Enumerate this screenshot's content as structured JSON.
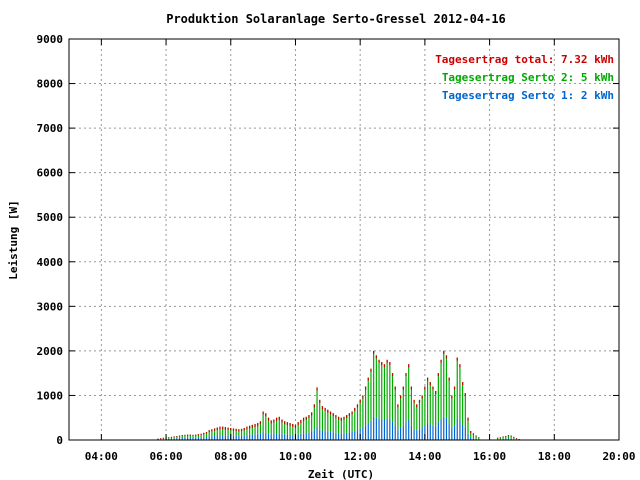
{
  "chart_data": {
    "type": "bar",
    "title": "Produktion Solaranlage Serto-Gressel 2012-04-16",
    "xlabel": "Zeit (UTC)",
    "ylabel": "Leistung [W]",
    "ylim": [
      0,
      9000
    ],
    "yticks": [
      "0",
      "1000",
      "2000",
      "3000",
      "4000",
      "5000",
      "6000",
      "7000",
      "8000",
      "9000"
    ],
    "xlim_hours": [
      3.0,
      20.0
    ],
    "xticks": [
      {
        "hour": 4,
        "label": "04:00"
      },
      {
        "hour": 6,
        "label": "06:00"
      },
      {
        "hour": 8,
        "label": "08:00"
      },
      {
        "hour": 10,
        "label": "10:00"
      },
      {
        "hour": 12,
        "label": "12:00"
      },
      {
        "hour": 14,
        "label": "14:00"
      },
      {
        "hour": 16,
        "label": "16:00"
      },
      {
        "hour": 18,
        "label": "18:00"
      },
      {
        "hour": 20,
        "label": "20:00"
      }
    ],
    "grid": true,
    "legend_position": "top-right",
    "legend": [
      {
        "text": "Tagesertrag total: 7.32 kWh",
        "color": "#cc0000"
      },
      {
        "text": "Tagesertrag Serto 2: 5 kWh",
        "color": "#00aa00"
      },
      {
        "text": "Tagesertrag Serto 1: 2 kWh",
        "color": "#0066cc"
      }
    ],
    "series_colors": {
      "serto1": "#0066cc",
      "serto2": "#00aa00",
      "total": "#cc0000"
    },
    "time_start": "05:45",
    "time_step_minutes": 5,
    "total": [
      30,
      40,
      50,
      55,
      60,
      70,
      80,
      90,
      100,
      110,
      115,
      120,
      120,
      115,
      120,
      130,
      140,
      160,
      180,
      220,
      240,
      260,
      280,
      300,
      300,
      290,
      280,
      270,
      260,
      250,
      240,
      250,
      270,
      300,
      320,
      340,
      360,
      380,
      420,
      640,
      600,
      500,
      440,
      460,
      500,
      520,
      460,
      420,
      400,
      380,
      360,
      340,
      400,
      450,
      500,
      520,
      560,
      620,
      800,
      1180,
      900,
      760,
      720,
      680,
      640,
      600,
      560,
      520,
      500,
      520,
      560,
      600,
      640,
      720,
      800,
      900,
      1000,
      1200,
      1400,
      1600,
      2000,
      1900,
      1800,
      1750,
      1700,
      1800,
      1750,
      1500,
      1200,
      800,
      1000,
      1200,
      1500,
      1700,
      1200,
      900,
      800,
      900,
      1000,
      1200,
      1400,
      1300,
      1200,
      1100,
      1500,
      1800,
      2000,
      1900,
      1400,
      1000,
      1200,
      1850,
      1700,
      1300,
      1050,
      500,
      200,
      150,
      100,
      60,
      0,
      0,
      0,
      0,
      0,
      0,
      50,
      60,
      80,
      90,
      110,
      100,
      70,
      40,
      20
    ],
    "serto1": [
      10,
      15,
      20,
      20,
      25,
      25,
      30,
      35,
      40,
      45,
      45,
      50,
      50,
      45,
      50,
      50,
      55,
      60,
      70,
      80,
      90,
      100,
      110,
      110,
      110,
      105,
      100,
      100,
      95,
      90,
      90,
      95,
      100,
      110,
      120,
      125,
      130,
      140,
      150,
      170,
      160,
      140,
      130,
      135,
      145,
      150,
      135,
      125,
      120,
      115,
      110,
      105,
      120,
      135,
      150,
      155,
      165,
      180,
      220,
      300,
      240,
      210,
      200,
      190,
      180,
      170,
      160,
      150,
      145,
      150,
      160,
      170,
      180,
      200,
      220,
      250,
      280,
      330,
      380,
      430,
      520,
      500,
      480,
      470,
      460,
      480,
      470,
      410,
      330,
      220,
      270,
      320,
      400,
      450,
      320,
      240,
      220,
      240,
      270,
      320,
      370,
      350,
      320,
      300,
      400,
      470,
      520,
      500,
      370,
      270,
      320,
      480,
      440,
      340,
      280,
      140,
      60,
      40,
      30,
      20,
      0,
      0,
      0,
      0,
      0,
      0,
      15,
      20,
      25,
      30,
      35,
      30,
      20,
      12,
      6
    ]
  }
}
